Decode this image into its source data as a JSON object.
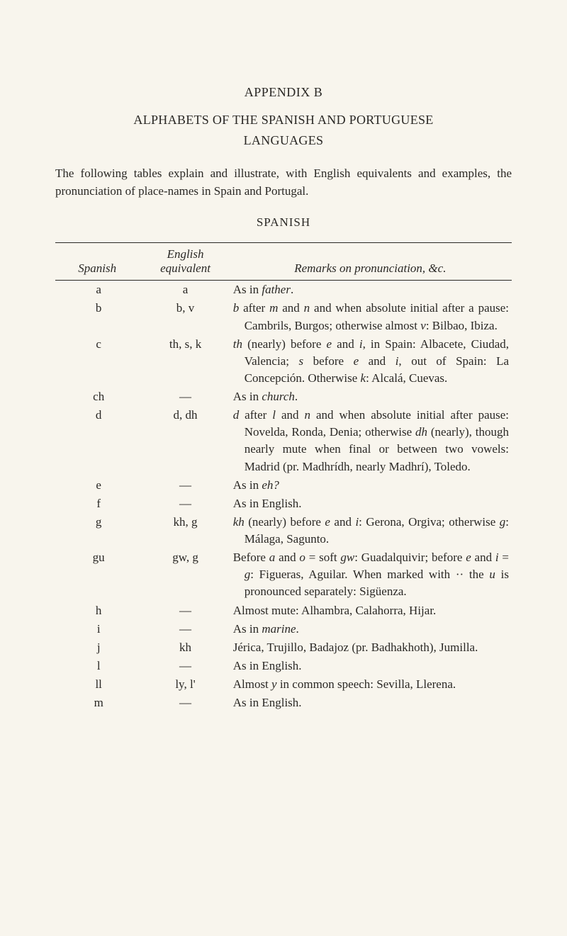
{
  "appendix_label": "APPENDIX B",
  "title_line1": "ALPHABETS OF THE SPANISH AND PORTUGUESE",
  "title_line2": "LANGUAGES",
  "intro": "The following tables explain and illustrate, with English equivalents and examples, the pronunciation of place-names in Spain and Portugal.",
  "lang_heading": "SPANISH",
  "columns": {
    "spanish": "Spanish",
    "english_line1": "English",
    "english_line2": "equivalent",
    "remarks": "Remarks on pronunciation, &c."
  },
  "rows": [
    {
      "spanish": "a",
      "english": "a",
      "remarks": "As in <i>father</i>."
    },
    {
      "spanish": "b",
      "english": "b, v",
      "remarks": "<i>b</i> after <i>m</i> and <i>n</i> and when absolute initial after a pause: Cambrils, Burgos; otherwise almost <i>v</i>: Bilbao, Ibiza."
    },
    {
      "spanish": "c",
      "english": "th, s, k",
      "remarks": "<i>th</i> (nearly) before <i>e</i> and <i>i</i>, in Spain: Albacete, Ciudad, Valencia; <i>s</i> before <i>e</i> and <i>i</i>, out of Spain: La Concepción. Otherwise <i>k</i>: Alcalá, Cuevas."
    },
    {
      "spanish": "ch",
      "english": "—",
      "remarks": "As in <i>church</i>."
    },
    {
      "spanish": "d",
      "english": "d, dh",
      "remarks": "<i>d</i> after <i>l</i> and <i>n</i> and when absolute initial after pause: Novelda, Ronda, Denia; otherwise <i>dh</i> (nearly), though nearly mute when final or between two vowels: Madrid (pr. Madhrídh, nearly Madhrí), Toledo."
    },
    {
      "spanish": "e",
      "english": "—",
      "remarks": "As in <i>eh?</i>"
    },
    {
      "spanish": "f",
      "english": "—",
      "remarks": "As in English."
    },
    {
      "spanish": "g",
      "english": "kh, g",
      "remarks": "<i>kh</i> (nearly) before <i>e</i> and <i>i</i>: Gerona, Orgiva; otherwise <i>g</i>: Málaga, Sagunto."
    },
    {
      "spanish": "gu",
      "english": "gw, g",
      "remarks": "Before <i>a</i> and <i>o</i> = soft <i>gw</i>: Guadalquivir; before <i>e</i> and <i>i</i> = <i>g</i>: Figueras, Aguilar. When marked with ·· the <i>u</i> is pronounced separately: Sigüenza."
    },
    {
      "spanish": "h",
      "english": "—",
      "remarks": "Almost mute: Alhambra, Calahorra, Hijar."
    },
    {
      "spanish": "i",
      "english": "—",
      "remarks": "As in <i>marine</i>."
    },
    {
      "spanish": "j",
      "english": "kh",
      "remarks": "Jérica, Trujillo, Badajoz (pr. Badhakhoth), Jumilla."
    },
    {
      "spanish": "l",
      "english": "—",
      "remarks": "As in English."
    },
    {
      "spanish": "ll",
      "english": "ly, l'",
      "remarks": "Almost <i>y</i> in common speech: Sevilla, Llerena."
    },
    {
      "spanish": "m",
      "english": "—",
      "remarks": "As in English."
    }
  ]
}
